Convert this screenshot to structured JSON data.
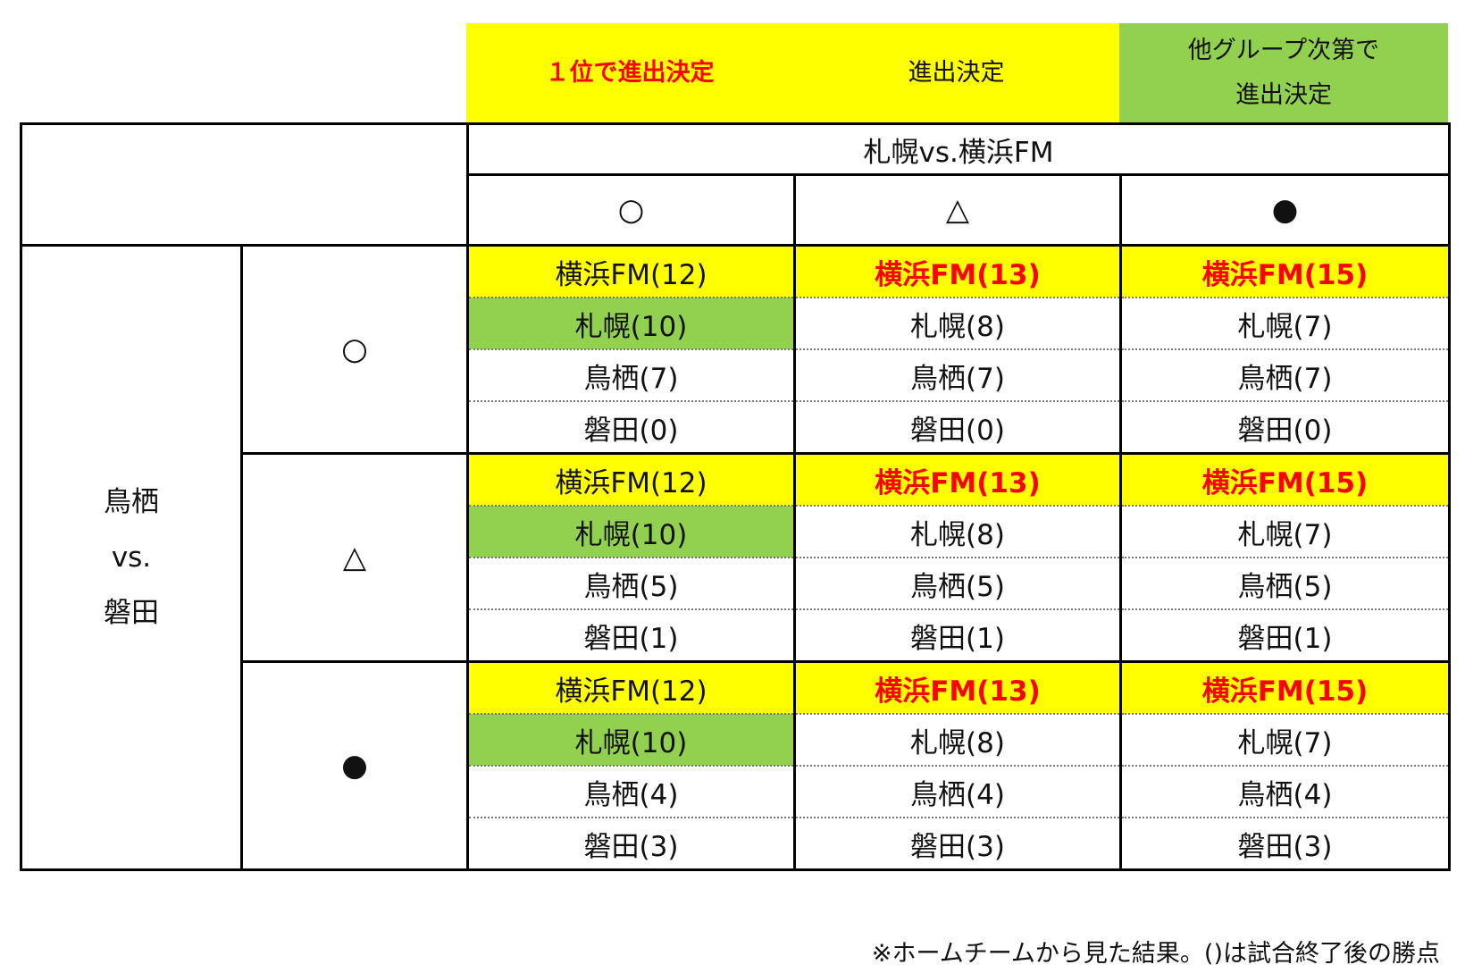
{
  "legend": {
    "first_place": "１位で進出決定",
    "advance": "進出決定",
    "depends_line1": "他グループ次第で",
    "depends_line2": "進出決定"
  },
  "colors": {
    "yellow": "#ffff00",
    "green": "#92d050",
    "red": "#ff0000"
  },
  "header": {
    "match": "札幌vs.横浜FM",
    "results": [
      "○",
      "△",
      "●"
    ]
  },
  "side": {
    "line1": "鳥栖",
    "line2": "vs.",
    "line3": "磐田"
  },
  "groups": [
    {
      "result": "○",
      "rows": [
        [
          "横浜FM(12)",
          "横浜FM(13)",
          "横浜FM(15)"
        ],
        [
          "札幌(10)",
          "札幌(8)",
          "札幌(7)"
        ],
        [
          "鳥栖(7)",
          "鳥栖(7)",
          "鳥栖(7)"
        ],
        [
          "磐田(0)",
          "磐田(0)",
          "磐田(0)"
        ]
      ]
    },
    {
      "result": "△",
      "rows": [
        [
          "横浜FM(12)",
          "横浜FM(13)",
          "横浜FM(15)"
        ],
        [
          "札幌(10)",
          "札幌(8)",
          "札幌(7)"
        ],
        [
          "鳥栖(5)",
          "鳥栖(5)",
          "鳥栖(5)"
        ],
        [
          "磐田(1)",
          "磐田(1)",
          "磐田(1)"
        ]
      ]
    },
    {
      "result": "●",
      "rows": [
        [
          "横浜FM(12)",
          "横浜FM(13)",
          "横浜FM(15)"
        ],
        [
          "札幌(10)",
          "札幌(8)",
          "札幌(7)"
        ],
        [
          "鳥栖(4)",
          "鳥栖(4)",
          "鳥栖(4)"
        ],
        [
          "磐田(3)",
          "磐田(3)",
          "磐田(3)"
        ]
      ]
    }
  ],
  "note": "※ホームチームから見た結果。()は試合終了後の勝点"
}
